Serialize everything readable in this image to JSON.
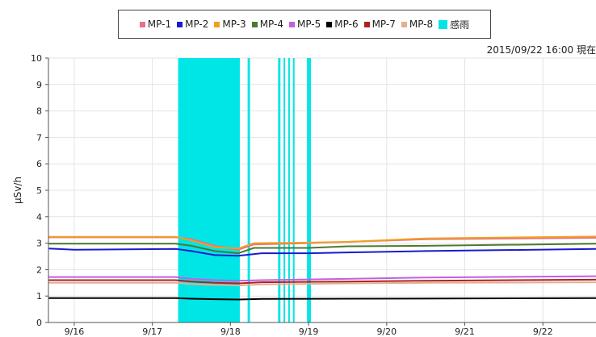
{
  "timestamp": "2015/09/22 16:00 現在",
  "chart_data": {
    "type": "line",
    "ylabel": "μSv/h",
    "xlabel": "",
    "ylim": [
      0,
      10
    ],
    "yticks": [
      "0",
      "1",
      "2",
      "3",
      "4",
      "5",
      "6",
      "7",
      "8",
      "9",
      "10"
    ],
    "xlim": [
      15.67,
      22.68
    ],
    "xticks": [
      {
        "x": 16,
        "label": "9/16"
      },
      {
        "x": 17,
        "label": "9/17"
      },
      {
        "x": 18,
        "label": "9/18"
      },
      {
        "x": 19,
        "label": "9/19"
      },
      {
        "x": 20,
        "label": "9/20"
      },
      {
        "x": 21,
        "label": "9/21"
      },
      {
        "x": 22,
        "label": "9/22"
      }
    ],
    "grid": true,
    "legend": "top",
    "series": [
      {
        "name": "MP-1",
        "color": "#e8708a",
        "points": [
          [
            15.67,
            3.22
          ],
          [
            17.3,
            3.22
          ],
          [
            17.5,
            3.15
          ],
          [
            17.8,
            2.9
          ],
          [
            18.1,
            2.75
          ],
          [
            18.3,
            2.95
          ],
          [
            19.0,
            3.0
          ],
          [
            19.5,
            3.05
          ],
          [
            20.5,
            3.15
          ],
          [
            22.68,
            3.2
          ]
        ]
      },
      {
        "name": "MP-2",
        "color": "#1a1ad0",
        "points": [
          [
            15.67,
            2.8
          ],
          [
            16.0,
            2.75
          ],
          [
            17.3,
            2.78
          ],
          [
            17.5,
            2.7
          ],
          [
            17.8,
            2.55
          ],
          [
            18.1,
            2.52
          ],
          [
            18.4,
            2.62
          ],
          [
            19.0,
            2.62
          ],
          [
            19.5,
            2.65
          ],
          [
            20.5,
            2.7
          ],
          [
            22.68,
            2.78
          ]
        ]
      },
      {
        "name": "MP-3",
        "color": "#f0a020",
        "points": [
          [
            15.67,
            3.24
          ],
          [
            17.3,
            3.24
          ],
          [
            17.5,
            3.1
          ],
          [
            17.8,
            2.85
          ],
          [
            18.1,
            2.8
          ],
          [
            18.3,
            3.0
          ],
          [
            19.0,
            3.02
          ],
          [
            19.5,
            3.05
          ],
          [
            20.5,
            3.18
          ],
          [
            22.68,
            3.25
          ]
        ]
      },
      {
        "name": "MP-4",
        "color": "#4a7a30",
        "points": [
          [
            15.67,
            2.98
          ],
          [
            17.3,
            2.98
          ],
          [
            17.5,
            2.9
          ],
          [
            17.8,
            2.7
          ],
          [
            18.1,
            2.62
          ],
          [
            18.3,
            2.82
          ],
          [
            19.0,
            2.82
          ],
          [
            19.5,
            2.88
          ],
          [
            20.5,
            2.9
          ],
          [
            22.68,
            2.98
          ]
        ]
      },
      {
        "name": "MP-5",
        "color": "#c060e0",
        "points": [
          [
            15.67,
            1.72
          ],
          [
            17.3,
            1.72
          ],
          [
            17.5,
            1.65
          ],
          [
            17.8,
            1.6
          ],
          [
            18.1,
            1.58
          ],
          [
            18.4,
            1.6
          ],
          [
            19.5,
            1.65
          ],
          [
            20.5,
            1.7
          ],
          [
            22.68,
            1.75
          ]
        ]
      },
      {
        "name": "MP-6",
        "color": "#000000",
        "points": [
          [
            15.67,
            0.92
          ],
          [
            17.3,
            0.92
          ],
          [
            17.5,
            0.9
          ],
          [
            17.8,
            0.88
          ],
          [
            18.1,
            0.87
          ],
          [
            18.4,
            0.89
          ],
          [
            19.5,
            0.9
          ],
          [
            22.68,
            0.92
          ]
        ]
      },
      {
        "name": "MP-7",
        "color": "#b02020",
        "points": [
          [
            15.67,
            1.6
          ],
          [
            17.3,
            1.6
          ],
          [
            17.5,
            1.55
          ],
          [
            17.8,
            1.5
          ],
          [
            18.1,
            1.48
          ],
          [
            18.4,
            1.52
          ],
          [
            19.5,
            1.55
          ],
          [
            20.5,
            1.58
          ],
          [
            22.68,
            1.62
          ]
        ]
      },
      {
        "name": "MP-8",
        "color": "#e0b090",
        "points": [
          [
            15.67,
            1.5
          ],
          [
            17.3,
            1.5
          ],
          [
            17.5,
            1.45
          ],
          [
            17.8,
            1.42
          ],
          [
            18.1,
            1.4
          ],
          [
            18.4,
            1.44
          ],
          [
            19.5,
            1.48
          ],
          [
            20.5,
            1.5
          ],
          [
            22.68,
            1.52
          ]
        ]
      }
    ],
    "rain_name": "感雨",
    "rain_color": "#00e5e5",
    "rain_intervals": [
      [
        17.33,
        18.12
      ],
      [
        18.22,
        18.25
      ],
      [
        18.61,
        18.64
      ],
      [
        18.68,
        18.7
      ],
      [
        18.74,
        18.76
      ],
      [
        18.8,
        18.82
      ],
      [
        18.98,
        19.03
      ]
    ]
  }
}
